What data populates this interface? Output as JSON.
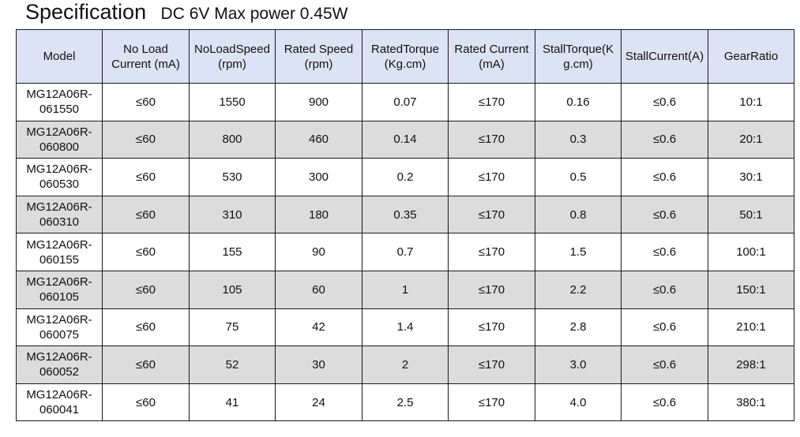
{
  "title": {
    "main": "Specification",
    "sub": "DC 6V Max power 0.45W"
  },
  "table": {
    "headers": [
      "Model",
      "No Load\nCurrent    (mA)",
      "NoLoadSpeed\n(rpm)",
      "Rated Speed\n(rpm)",
      "RatedTorque\n(Kg.cm)",
      "Rated Current\n(mA)",
      "StallTorque(K\ng.cm)",
      "StallCurrent(A)",
      "GearRatio"
    ],
    "rows": [
      [
        "MG12A06R-\n061550",
        "≤60",
        "1550",
        "900",
        "0.07",
        "≤170",
        "0.16",
        "≤0.6",
        "10:1"
      ],
      [
        "MG12A06R-\n060800",
        "≤60",
        "800",
        "460",
        "0.14",
        "≤170",
        "0.3",
        "≤0.6",
        "20:1"
      ],
      [
        "MG12A06R-\n060530",
        "≤60",
        "530",
        "300",
        "0.2",
        "≤170",
        "0.5",
        "≤0.6",
        "30:1"
      ],
      [
        "MG12A06R-\n060310",
        "≤60",
        "310",
        "180",
        "0.35",
        "≤170",
        "0.8",
        "≤0.6",
        "50:1"
      ],
      [
        "MG12A06R-\n060155",
        "≤60",
        "155",
        "90",
        "0.7",
        "≤170",
        "1.5",
        "≤0.6",
        "100:1"
      ],
      [
        "MG12A06R-\n060105",
        "≤60",
        "105",
        "60",
        "1",
        "≤170",
        "2.2",
        "≤0.6",
        "150:1"
      ],
      [
        "MG12A06R-\n060075",
        "≤60",
        "75",
        "42",
        "1.4",
        "≤170",
        "2.8",
        "≤0.6",
        "210:1"
      ],
      [
        "MG12A06R-\n060052",
        "≤60",
        "52",
        "30",
        "2",
        "≤170",
        "3.0",
        "≤0.6",
        "298:1"
      ],
      [
        "MG12A06R-\n060041",
        "≤60",
        "41",
        "24",
        "2.5",
        "≤170",
        "4.0",
        "≤0.6",
        "380:1"
      ]
    ]
  },
  "colors": {
    "header_bg": "#dbe3f5",
    "shaded_row_bg": "#dcdcdc",
    "border": "#1a1a1a"
  }
}
